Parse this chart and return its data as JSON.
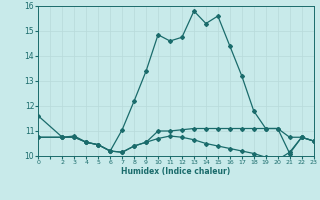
{
  "xlabel": "Humidex (Indice chaleur)",
  "ylabel": "",
  "bg_color": "#c8eaea",
  "grid_color": "#b8dada",
  "line_color": "#1a6b6b",
  "xlim": [
    0,
    23
  ],
  "ylim": [
    10,
    16
  ],
  "yticks": [
    10,
    11,
    12,
    13,
    14,
    15,
    16
  ],
  "series1_x": [
    0,
    2,
    3,
    4,
    5,
    6,
    7,
    8,
    9,
    10,
    11,
    12,
    13,
    14,
    15,
    16,
    17,
    18,
    19,
    20,
    21,
    22,
    23
  ],
  "series1_y": [
    11.6,
    10.75,
    10.8,
    10.55,
    10.45,
    10.2,
    11.05,
    12.2,
    13.4,
    14.85,
    14.6,
    14.75,
    15.8,
    15.3,
    15.6,
    14.4,
    13.2,
    11.8,
    11.1,
    11.1,
    10.1,
    10.75,
    10.6
  ],
  "series2_x": [
    0,
    2,
    3,
    4,
    5,
    6,
    7,
    8,
    9,
    10,
    11,
    12,
    13,
    14,
    15,
    16,
    17,
    18,
    19,
    20,
    21,
    22,
    23
  ],
  "series2_y": [
    10.75,
    10.75,
    10.75,
    10.55,
    10.45,
    10.2,
    10.15,
    10.4,
    10.55,
    11.0,
    11.0,
    11.05,
    11.1,
    11.1,
    11.1,
    11.1,
    11.1,
    11.1,
    11.1,
    11.1,
    10.75,
    10.75,
    10.6
  ],
  "series3_x": [
    0,
    2,
    3,
    4,
    5,
    6,
    7,
    8,
    9,
    10,
    11,
    12,
    13,
    14,
    15,
    16,
    17,
    18,
    19,
    20,
    21,
    22,
    23
  ],
  "series3_y": [
    10.75,
    10.75,
    10.75,
    10.55,
    10.45,
    10.2,
    10.15,
    10.4,
    10.55,
    10.7,
    10.8,
    10.75,
    10.65,
    10.5,
    10.4,
    10.3,
    10.2,
    10.1,
    9.95,
    9.85,
    10.15,
    10.75,
    10.6
  ],
  "marker": "D",
  "markersize": 2.0,
  "linewidth": 0.9
}
